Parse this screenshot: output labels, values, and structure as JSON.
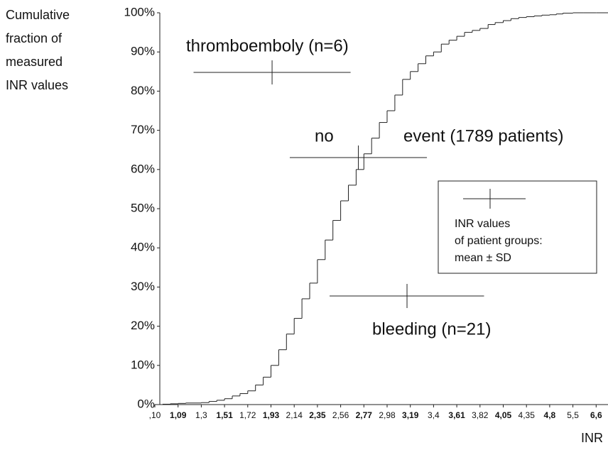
{
  "chart_data": {
    "type": "step",
    "ylabel": [
      "Cumulative",
      "fraction of",
      "measured",
      "INR values"
    ],
    "xlabel": "INR",
    "ylim": [
      0,
      100
    ],
    "yticks": [
      {
        "value": 0,
        "label": "0%"
      },
      {
        "value": 10,
        "label": "10%"
      },
      {
        "value": 20,
        "label": "20%"
      },
      {
        "value": 30,
        "label": "30%"
      },
      {
        "value": 40,
        "label": "40%"
      },
      {
        "value": 50,
        "label": "50%"
      },
      {
        "value": 60,
        "label": "60%"
      },
      {
        "value": 70,
        "label": "70%"
      },
      {
        "value": 80,
        "label": "80%"
      },
      {
        "value": 90,
        "label": "90%"
      },
      {
        "value": 100,
        "label": "100%"
      }
    ],
    "xlim": [
      0.1,
      6.6
    ],
    "xticks": [
      {
        "value": 0.1,
        "label": ",10"
      },
      {
        "value": 1.09,
        "label": "1,09"
      },
      {
        "value": 1.3,
        "label": "1,3"
      },
      {
        "value": 1.51,
        "label": "1,51"
      },
      {
        "value": 1.72,
        "label": "1,72"
      },
      {
        "value": 1.93,
        "label": "1,93"
      },
      {
        "value": 2.14,
        "label": "2,14"
      },
      {
        "value": 2.35,
        "label": "2,35"
      },
      {
        "value": 2.56,
        "label": "2,56"
      },
      {
        "value": 2.77,
        "label": "2,77"
      },
      {
        "value": 2.98,
        "label": "2,98"
      },
      {
        "value": 3.19,
        "label": "3,19"
      },
      {
        "value": 3.4,
        "label": "3,4"
      },
      {
        "value": 3.61,
        "label": "3,61"
      },
      {
        "value": 3.82,
        "label": "3,82"
      },
      {
        "value": 4.05,
        "label": "4,05"
      },
      {
        "value": 4.35,
        "label": "4,35"
      },
      {
        "value": 4.8,
        "label": "4,8"
      },
      {
        "value": 5.5,
        "label": "5,5"
      },
      {
        "value": 6.6,
        "label": "6,6"
      }
    ],
    "x": [
      0.1,
      0.43,
      0.76,
      1.09,
      1.16,
      1.23,
      1.3,
      1.37,
      1.44,
      1.51,
      1.58,
      1.65,
      1.72,
      1.79,
      1.86,
      1.93,
      2.0,
      2.07,
      2.14,
      2.21,
      2.28,
      2.35,
      2.42,
      2.49,
      2.56,
      2.63,
      2.7,
      2.77,
      2.84,
      2.91,
      2.98,
      3.05,
      3.12,
      3.19,
      3.26,
      3.33,
      3.4,
      3.47,
      3.54,
      3.61,
      3.68,
      3.75,
      3.82,
      3.9,
      3.97,
      4.05,
      4.15,
      4.25,
      4.35,
      4.5,
      4.65,
      4.8,
      5.0,
      5.2,
      5.5,
      6.0,
      6.6
    ],
    "values": [
      0,
      0.1,
      0.2,
      0.3,
      0.4,
      0.4,
      0.5,
      0.8,
      1.1,
      1.5,
      2.2,
      2.8,
      3.5,
      5,
      7,
      10,
      14,
      18,
      22,
      27,
      31,
      37,
      42,
      47,
      52,
      56,
      60,
      64,
      68,
      72,
      75,
      79,
      83,
      85,
      87,
      89,
      90,
      92,
      93,
      94,
      95,
      95.5,
      96,
      97,
      97.5,
      98,
      98.5,
      98.8,
      99,
      99.2,
      99.4,
      99.5,
      99.7,
      99.9,
      100,
      100,
      100
    ],
    "annotations": [
      "thromboemboly (n=6)",
      "no",
      "event (1789 patients)",
      "bleeding (n=21)"
    ],
    "groups": [
      {
        "mean": 1.94,
        "sd": 0.71
      },
      {
        "mean": 2.72,
        "sd": 0.62
      },
      {
        "mean": 3.16,
        "sd": 0.7
      }
    ],
    "legend": [
      "INR values",
      "of patient groups:",
      "mean ± SD"
    ]
  }
}
